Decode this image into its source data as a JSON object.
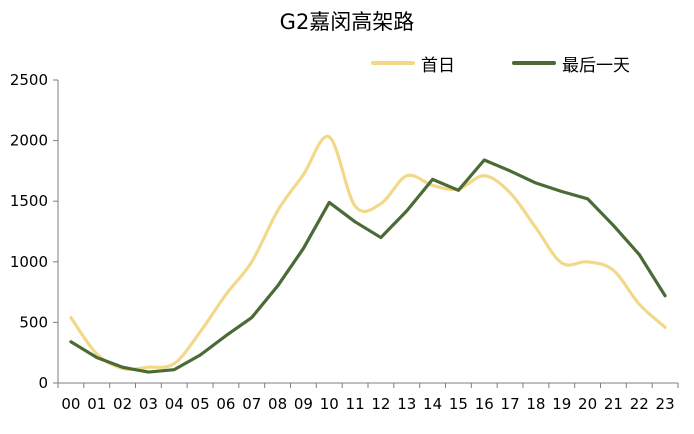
{
  "chart_data": {
    "type": "line",
    "title": "G2嘉闵高架路",
    "xlabel": "",
    "ylabel": "",
    "categories": [
      "00",
      "01",
      "02",
      "03",
      "04",
      "05",
      "06",
      "07",
      "08",
      "09",
      "10",
      "11",
      "12",
      "13",
      "14",
      "15",
      "16",
      "17",
      "18",
      "19",
      "20",
      "21",
      "22",
      "23"
    ],
    "ylim": [
      0,
      2500
    ],
    "yticks": [
      0,
      500,
      1000,
      1500,
      2000,
      2500
    ],
    "grid": false,
    "legend": "top-right",
    "series": [
      {
        "name": "首日",
        "color": "#f2d98a",
        "smooth": true,
        "values": [
          540,
          240,
          120,
          130,
          160,
          420,
          730,
          1000,
          1420,
          1720,
          2030,
          1460,
          1480,
          1710,
          1630,
          1600,
          1710,
          1570,
          1280,
          990,
          1000,
          930,
          650,
          460
        ]
      },
      {
        "name": "最后一天",
        "color": "#4a6b35",
        "smooth": false,
        "values": [
          340,
          210,
          130,
          90,
          110,
          230,
          390,
          540,
          800,
          1110,
          1490,
          1330,
          1200,
          1420,
          1680,
          1590,
          1840,
          1750,
          1650,
          1580,
          1520,
          1300,
          1060,
          720
        ]
      }
    ]
  }
}
